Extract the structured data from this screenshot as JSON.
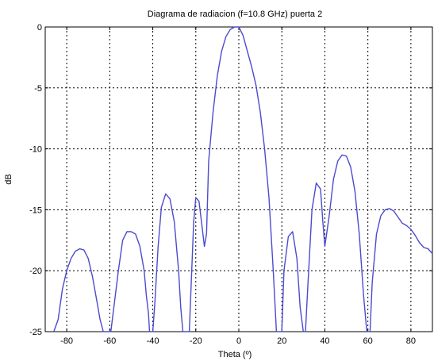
{
  "chart_data": {
    "type": "line",
    "title": "Diagrama de radiacion (f=10.8 GHz) puerta 2",
    "xlabel": "Theta (º)",
    "ylabel": "dB",
    "xlim": [
      -90,
      90
    ],
    "ylim": [
      -25,
      0
    ],
    "xticks": [
      -80,
      -60,
      -40,
      -20,
      0,
      20,
      40,
      60,
      80
    ],
    "xtick_labels": [
      "-80",
      "-60",
      "-40",
      "-20",
      "0",
      "20",
      "40",
      "60",
      "80"
    ],
    "yticks": [
      0,
      -5,
      -10,
      -15,
      -20,
      -25
    ],
    "ytick_labels": [
      "0",
      "-5",
      "-10",
      "-15",
      "-20",
      "-25"
    ],
    "grid": true,
    "line_color": "#4b4bd0",
    "series": [
      {
        "x": [
          -86,
          -84,
          -82,
          -80,
          -78,
          -76,
          -74,
          -72,
          -70,
          -68,
          -66,
          -64.5,
          -63,
          -62,
          -59.5,
          -56,
          -54,
          -52,
          -50,
          -48,
          -46,
          -44,
          -43,
          -42,
          -41.5,
          -40,
          -39,
          -37.5,
          -36,
          -34,
          -32,
          -30,
          -28,
          -27,
          -26,
          -25,
          -23,
          -21,
          -20,
          -18.5,
          -17,
          -16,
          -15,
          -14,
          -12,
          -10,
          -8,
          -6,
          -4,
          -2,
          0,
          2,
          4,
          6,
          8,
          10,
          12,
          14,
          16,
          17.5,
          18.5,
          20,
          21,
          23,
          25,
          27,
          28.5,
          30,
          31,
          32,
          34,
          36,
          38,
          39,
          40,
          42,
          44,
          46,
          48,
          50,
          52,
          54,
          56,
          58,
          59.5,
          61,
          62,
          64,
          66,
          68,
          70,
          72,
          74,
          76,
          78,
          80,
          82,
          84,
          86,
          88,
          90
        ],
        "y": [
          -25,
          -24,
          -21.5,
          -20,
          -19,
          -18.4,
          -18.2,
          -18.3,
          -19,
          -20.5,
          -22.5,
          -24,
          -25,
          -25,
          -25,
          -20,
          -17.5,
          -16.8,
          -16.8,
          -17,
          -18,
          -20,
          -22,
          -23.5,
          -25,
          -25,
          -22.5,
          -18,
          -14.8,
          -13.7,
          -14.1,
          -16,
          -20,
          -23,
          -25,
          -25,
          -25,
          -16,
          -14,
          -14.3,
          -16.5,
          -18,
          -17,
          -11,
          -7,
          -4,
          -2,
          -0.8,
          -0.2,
          0,
          0,
          -0.7,
          -2,
          -3.3,
          -4.8,
          -7,
          -10,
          -14,
          -20,
          -25,
          -25,
          -25,
          -20,
          -17.2,
          -16.8,
          -19,
          -23,
          -25,
          -25,
          -21.5,
          -15,
          -12.8,
          -13.3,
          -15.8,
          -18,
          -15.5,
          -12.5,
          -11,
          -10.5,
          -10.6,
          -11.5,
          -13.5,
          -17,
          -22,
          -25,
          -25,
          -21,
          -17,
          -15.5,
          -15,
          -14.9,
          -15.1,
          -15.6,
          -16.1,
          -16.3,
          -16.6,
          -17.1,
          -17.7,
          -18.1,
          -18.2,
          -18.6
        ]
      }
    ]
  }
}
